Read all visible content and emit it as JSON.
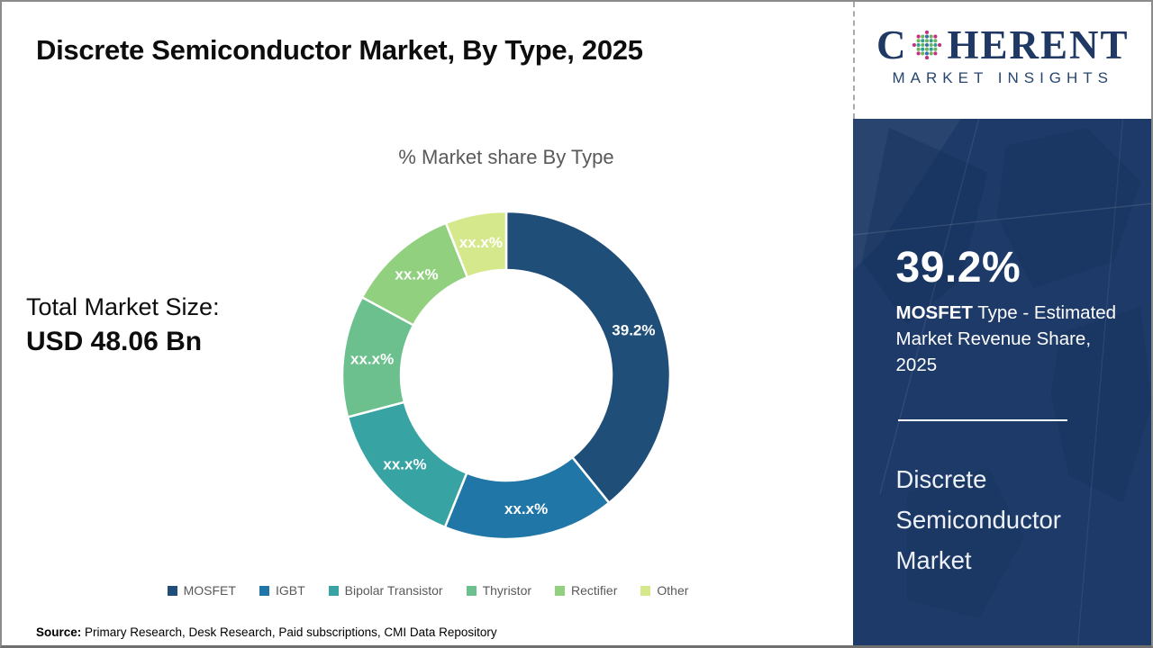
{
  "page": {
    "title": "Discrete Semiconductor Market, By Type, 2025",
    "source_label": "Source:",
    "source_text": " Primary Research, Desk Research, Paid subscriptions, CMI Data Repository"
  },
  "left": {
    "total_label": "Total Market Size:",
    "total_value": "USD 48.06 Bn"
  },
  "chart_data": {
    "type": "pie",
    "subtype": "donut",
    "title": "% Market share By Type",
    "categories": [
      "MOSFET",
      "IGBT",
      "Bipolar Transistor",
      "Thyristor",
      "Rectifier",
      "Other"
    ],
    "values_pct_est": [
      39.2,
      16.9,
      14.8,
      12.0,
      11.1,
      6.0
    ],
    "slice_labels": [
      "39.2%",
      "xx.x%",
      "xx.x%",
      "xx.x%",
      "xx.x%",
      "xx.x%"
    ],
    "colors": [
      "#1F4E79",
      "#2077A7",
      "#38A3A3",
      "#6CC08D",
      "#90D07E",
      "#D6E88C"
    ],
    "start_angle_deg": 0,
    "direction": "clockwise",
    "legend_position": "bottom"
  },
  "logo": {
    "line1_left": "C",
    "line1_right": "HERENT",
    "line2": "MARKET INSIGHTS",
    "brand_navy": "#1F3864",
    "globe_colors": [
      "#C2307E",
      "#2E9E93",
      "#6CB35C",
      "#3C6FB0"
    ]
  },
  "panel": {
    "stat_value": "39.2%",
    "stat_bold": "MOSFET",
    "stat_desc": " Type - Estimated Market Revenue Share, 2025",
    "market_name": "Discrete Semiconductor Market",
    "background": "#1E3A68"
  }
}
